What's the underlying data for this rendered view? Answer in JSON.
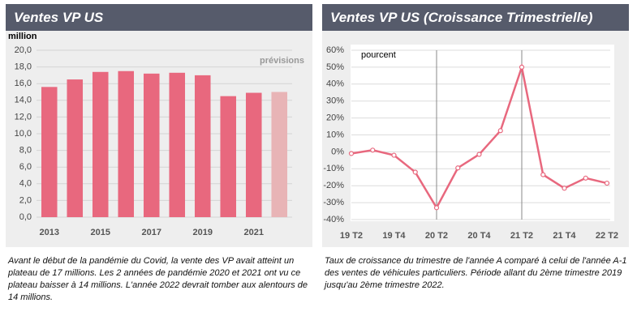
{
  "chart_data": [
    {
      "type": "bar",
      "title": "Ventes VP US",
      "ylabel": "million",
      "annotation": "prévisions",
      "categories": [
        "2013",
        null,
        "2015",
        null,
        "2017",
        null,
        "2019",
        null,
        "2021",
        null
      ],
      "values": [
        15.6,
        16.5,
        17.4,
        17.5,
        17.2,
        17.3,
        17.0,
        14.5,
        14.9,
        15.0
      ],
      "colors": [
        "#e8687e",
        "#e8687e",
        "#e8687e",
        "#e8687e",
        "#e8687e",
        "#e8687e",
        "#e8687e",
        "#e8687e",
        "#e8687e",
        "#e8b4b6"
      ],
      "ylim": [
        0,
        20
      ],
      "yticks": [
        {
          "value": 0,
          "label": "0,0"
        },
        {
          "value": 2,
          "label": "2,0"
        },
        {
          "value": 4,
          "label": "4,0"
        },
        {
          "value": 6,
          "label": "6,0"
        },
        {
          "value": 8,
          "label": "8,0"
        },
        {
          "value": 10,
          "label": "10,0"
        },
        {
          "value": 12,
          "label": "12,0"
        },
        {
          "value": 14,
          "label": "14,0"
        },
        {
          "value": 16,
          "label": "16,0"
        },
        {
          "value": 18,
          "label": "18,0"
        },
        {
          "value": 20,
          "label": "20,0"
        }
      ],
      "grid": true,
      "caption": "Avant le début de la pandémie du Covid, la vente des VP avait atteint un plateau de 17 millions. Les 2 années de pandémie 2020 et 2021 ont vu ce plateau baisser à 14 millions. L'année 2022 devrait tomber aux alentours de 14 millions."
    },
    {
      "type": "line",
      "title": "Ventes VP US (Croissance Trimestrielle)",
      "ylabel": "pourcent",
      "categories": [
        "19 T2",
        null,
        "19 T4",
        null,
        "20 T2",
        null,
        "20 T4",
        null,
        "21 T2",
        null,
        "21 T4",
        null,
        "22 T2"
      ],
      "values": [
        -1,
        1,
        -2,
        -12,
        -33,
        -9.5,
        -1.5,
        12.5,
        50,
        -13.5,
        -21.5,
        -15.5,
        -18.5
      ],
      "color": "#e8687e",
      "ylim": [
        -40,
        60
      ],
      "yticks": [
        {
          "value": -40,
          "label": "-40%"
        },
        {
          "value": -30,
          "label": "-30%"
        },
        {
          "value": -20,
          "label": "-20%"
        },
        {
          "value": -10,
          "label": "-10%"
        },
        {
          "value": 0,
          "label": "0%"
        },
        {
          "value": 10,
          "label": "10%"
        },
        {
          "value": 20,
          "label": "20%"
        },
        {
          "value": 30,
          "label": "30%"
        },
        {
          "value": 40,
          "label": "40%"
        },
        {
          "value": 50,
          "label": "50%"
        },
        {
          "value": 60,
          "label": "60%"
        }
      ],
      "grid": true,
      "caption": "Taux de croissance du trimestre de l'année A comparé à celui de l'année A-1 des ventes de véhicules particuliers. Période allant du 2ème trimestre 2019 jusqu'au 2ème trimestre 2022."
    }
  ]
}
